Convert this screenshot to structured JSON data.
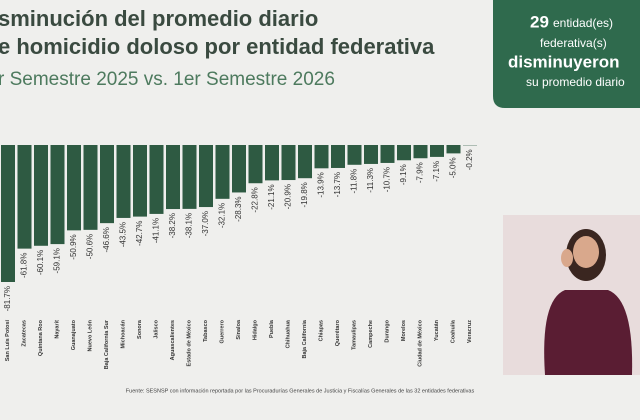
{
  "header": {
    "title_lines": [
      "sminución del promedio diario",
      "e homicidio doloso por entidad federativa"
    ],
    "subtitle": "r Semestre 2025 vs. 1er Semestre 2026"
  },
  "summary": {
    "count": "29",
    "line1": "entidad(es)",
    "line2": "federativa(s)",
    "highlight": "disminuyeron",
    "line3": "su promedio diario"
  },
  "chart_data": {
    "type": "bar",
    "color": "#2e5a42",
    "categories": [
      "San Luis Potosí",
      "Zacatecas",
      "Quintana Roo",
      "Nayarit",
      "Guanajuato",
      "Nuevo León",
      "Baja California Sur",
      "Michoacán",
      "Sonora",
      "Jalisco",
      "Aguascalientes",
      "Estado de México",
      "Tabasco",
      "Guerrero",
      "Sinaloa",
      "Hidalgo",
      "Puebla",
      "Chihuahua",
      "Baja California",
      "Chiapas",
      "Querétaro",
      "Tamaulipas",
      "Campeche",
      "Durango",
      "Morelos",
      "Ciudad de México",
      "Yucatán",
      "Coahuila",
      "Veracruz"
    ],
    "values": [
      -81.7,
      -61.8,
      -60.1,
      -59.1,
      -50.9,
      -50.6,
      -46.6,
      -43.5,
      -42.7,
      -41.1,
      -38.2,
      -38.1,
      -37.0,
      -32.1,
      -28.3,
      -22.8,
      -21.1,
      -20.9,
      -19.8,
      -13.9,
      -13.7,
      -11.8,
      -11.3,
      -10.7,
      -9.1,
      -7.9,
      -7.1,
      -5.0,
      -0.2
    ],
    "value_labels": [
      "-81.7%",
      "-61.8%",
      "-60.1%",
      "-59.1%",
      "-50.9%",
      "-50.6%",
      "-46.6%",
      "-43.5%",
      "-42.7%",
      "-41.1%",
      "-38.2%",
      "-38.1%",
      "-37.0%",
      "-32.1%",
      "-28.3%",
      "-22.8%",
      "-21.1%",
      "-20.9%",
      "-19.8%",
      "-13.9%",
      "-13.7%",
      "-11.8%",
      "-11.3%",
      "-10.7%",
      "-9.1%",
      "-7.9%",
      "-7.1%",
      "-5.0%",
      "-0.2%"
    ],
    "ylim": [
      -82,
      0
    ],
    "source": "Fuente: SESNSP con información reportada por las Procuradurías Generales de Justicia y Fiscalías Generales de las 32 entidades federativas"
  }
}
